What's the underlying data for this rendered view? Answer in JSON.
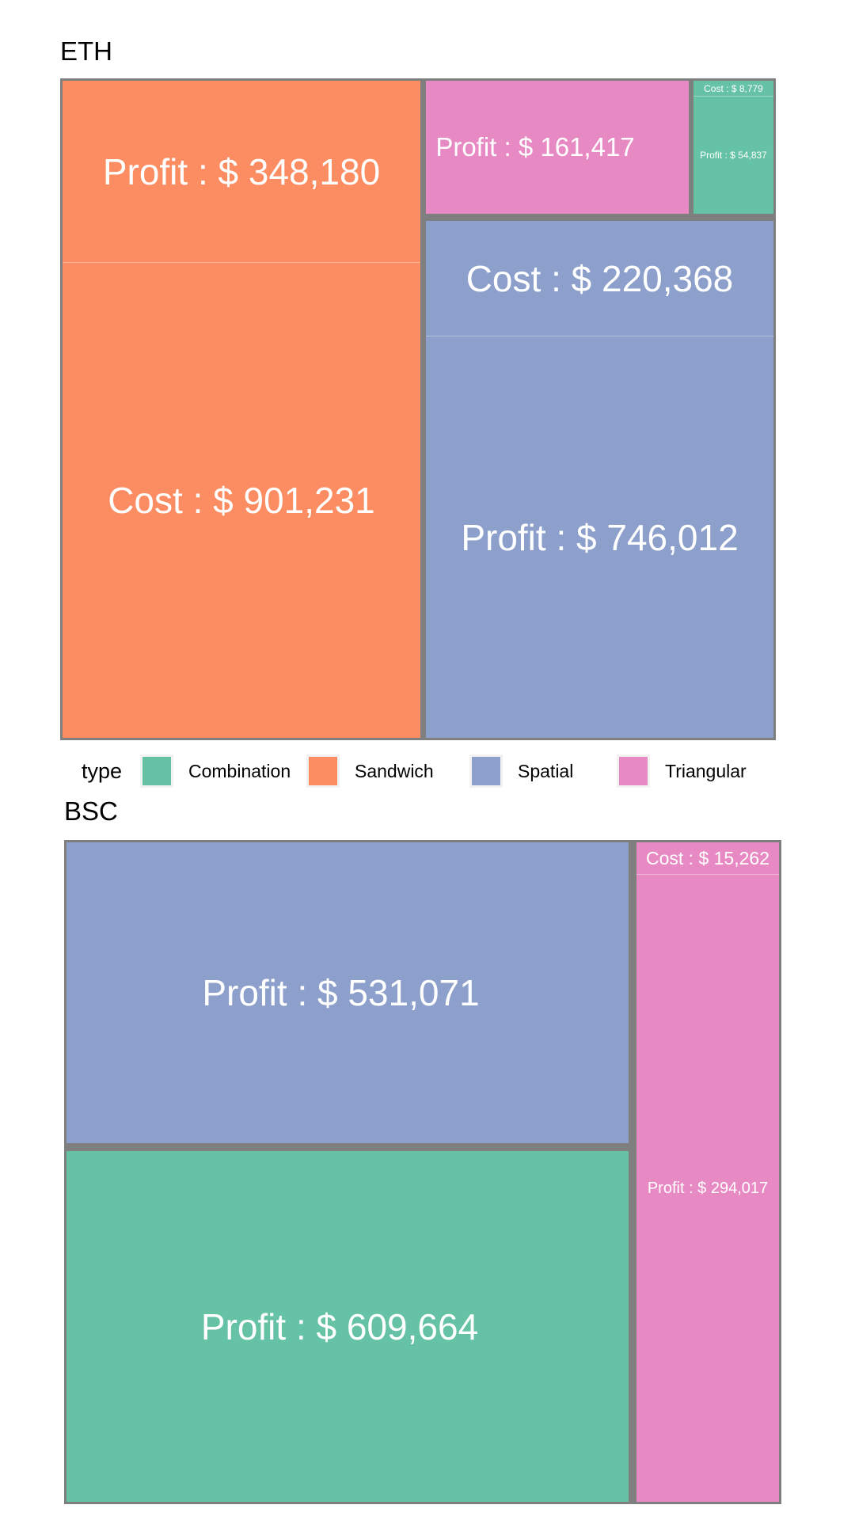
{
  "legend": {
    "title": "type",
    "items": [
      {
        "label": "Combination",
        "color": "#66c2a5"
      },
      {
        "label": "Sandwich",
        "color": "#fc8d62"
      },
      {
        "label": "Spatial",
        "color": "#8da0cb"
      },
      {
        "label": "Triangular",
        "color": "#e78ac3"
      }
    ]
  },
  "chart_data": [
    {
      "type": "treemap",
      "title": "ETH",
      "cells": [
        {
          "type": "Sandwich",
          "label": "Profit : $ 348,180",
          "metric": "Profit",
          "value": 348180
        },
        {
          "type": "Sandwich",
          "label": "Cost : $ 901,231",
          "metric": "Cost",
          "value": 901231
        },
        {
          "type": "Triangular",
          "label": "Profit : $ 161,417",
          "metric": "Profit",
          "value": 161417
        },
        {
          "type": "Triangular",
          "label": "",
          "metric": "Cost",
          "value": null
        },
        {
          "type": "Combination",
          "label": "Cost : $ 8,779",
          "metric": "Cost",
          "value": 8779
        },
        {
          "type": "Combination",
          "label": "Profit : $ 54,837",
          "metric": "Profit",
          "value": 54837
        },
        {
          "type": "Spatial",
          "label": "Cost : $ 220,368",
          "metric": "Cost",
          "value": 220368
        },
        {
          "type": "Spatial",
          "label": "Profit : $ 746,012",
          "metric": "Profit",
          "value": 746012
        }
      ]
    },
    {
      "type": "treemap",
      "title": "BSC",
      "cells": [
        {
          "type": "Spatial",
          "label": "Profit : $ 531,071",
          "metric": "Profit",
          "value": 531071
        },
        {
          "type": "Spatial",
          "label": "",
          "metric": "Cost",
          "value": null
        },
        {
          "type": "Combination",
          "label": "Profit : $ 609,664",
          "metric": "Profit",
          "value": 609664
        },
        {
          "type": "Combination",
          "label": "",
          "metric": "Cost",
          "value": null
        },
        {
          "type": "Triangular",
          "label": "Cost : $ 15,262",
          "metric": "Cost",
          "value": 15262
        },
        {
          "type": "Triangular",
          "label": "Profit : $ 294,017",
          "metric": "Profit",
          "value": 294017
        }
      ]
    }
  ]
}
